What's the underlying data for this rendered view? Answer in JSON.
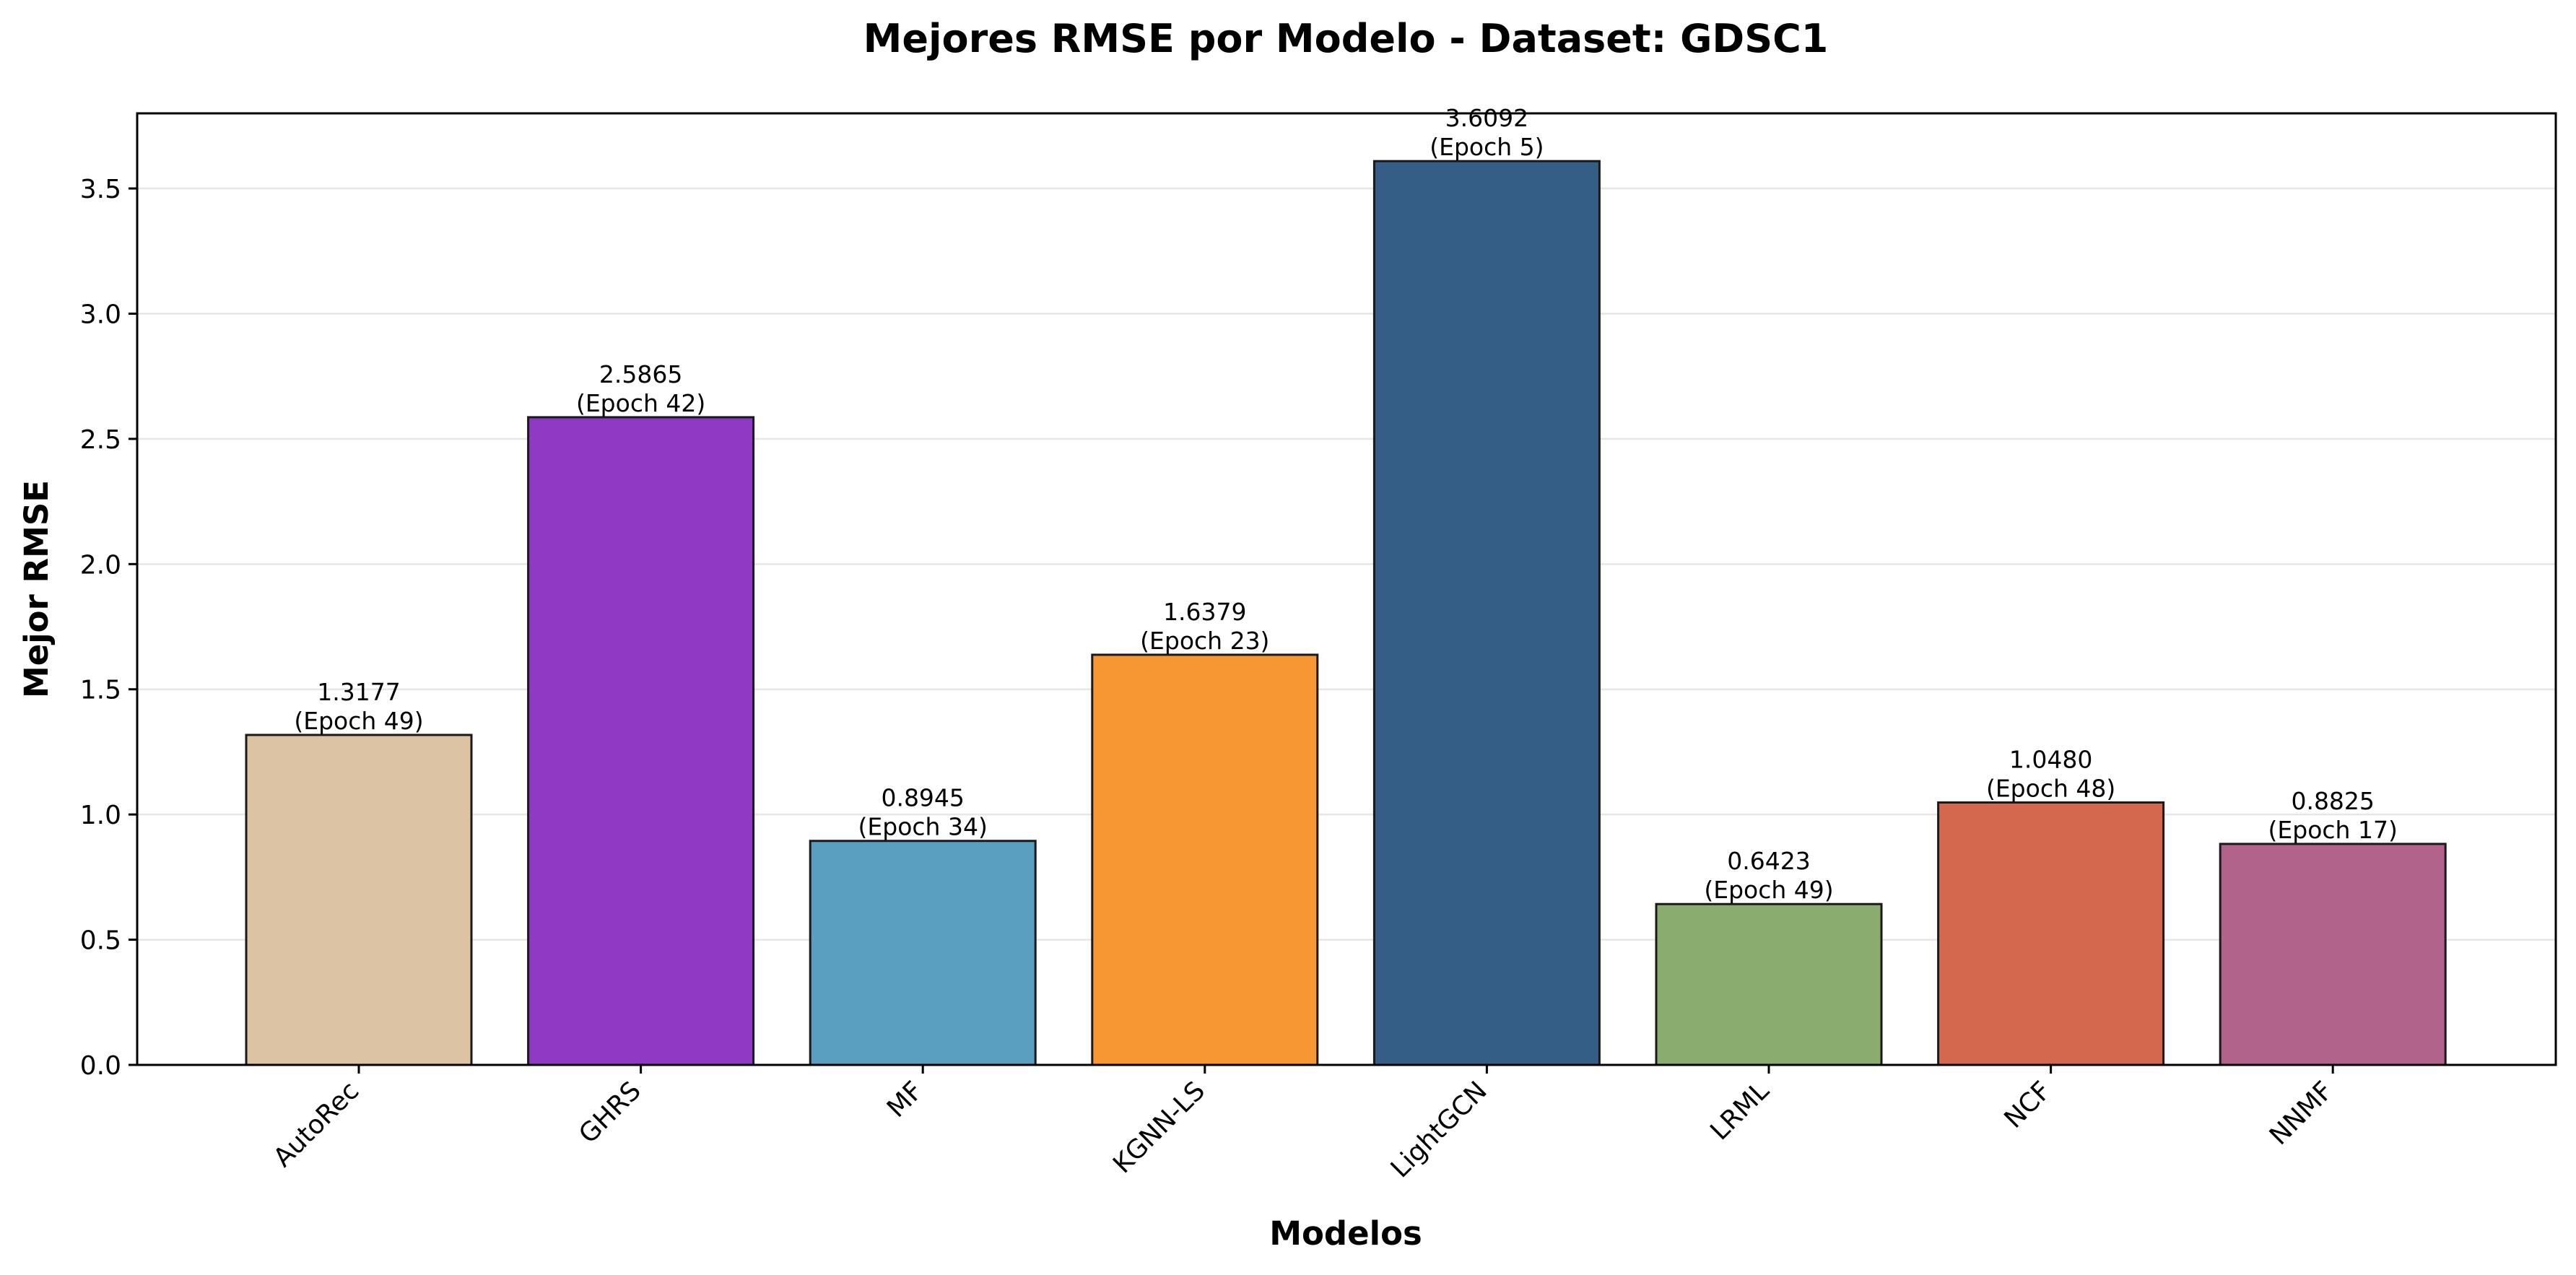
{
  "chart_data": {
    "type": "bar",
    "title": "Mejores RMSE por Modelo - Dataset: GDSC1",
    "xlabel": "Modelos",
    "ylabel": "Mejor RMSE",
    "ylim": [
      0,
      3.8
    ],
    "yticks": [
      0.0,
      0.5,
      1.0,
      1.5,
      2.0,
      2.5,
      3.0,
      3.5
    ],
    "ytick_labels": [
      "0.0",
      "0.5",
      "1.0",
      "1.5",
      "2.0",
      "2.5",
      "3.0",
      "3.5"
    ],
    "grid": "horizontal",
    "categories": [
      "AutoRec",
      "GHRS",
      "MF",
      "KGNN-LS",
      "LightGCN",
      "LRML",
      "NCF",
      "NNMF"
    ],
    "values": [
      1.3177,
      2.5865,
      0.8945,
      1.6379,
      3.6092,
      0.6423,
      1.048,
      0.8825
    ],
    "value_labels": [
      "1.3177",
      "2.5865",
      "0.8945",
      "1.6379",
      "3.6092",
      "0.6423",
      "1.0480",
      "0.8825"
    ],
    "epoch_labels": [
      "(Epoch 49)",
      "(Epoch 42)",
      "(Epoch 34)",
      "(Epoch 23)",
      "(Epoch 5)",
      "(Epoch 49)",
      "(Epoch 48)",
      "(Epoch 17)"
    ],
    "colors": [
      "#dcc3a3",
      "#8e3ac5",
      "#5a9fbf",
      "#f79733",
      "#345e86",
      "#8aad6f",
      "#d4684e",
      "#b2638b"
    ]
  }
}
